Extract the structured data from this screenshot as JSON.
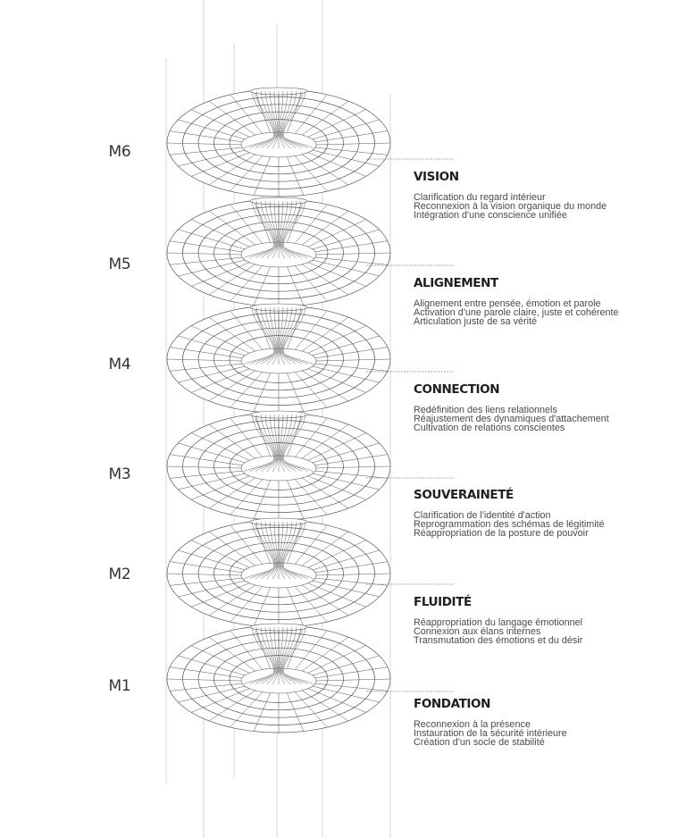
{
  "levels": [
    {
      "code": "M6",
      "title": "VISION",
      "lines": [
        "Clarification du regard intérieur",
        "Reconnexion à la vision organique du monde",
        "Intégration d'une conscience unifiée"
      ]
    },
    {
      "code": "M5",
      "title": "ALIGNEMENT",
      "lines": [
        "Alignement entre pensée, émotion et parole",
        "Activation d'une parole claire, juste et cohérente",
        "Articulation juste de sa vérité"
      ]
    },
    {
      "code": "M4",
      "title": "CONNECTION",
      "lines": [
        "Redéfinition des liens relationnels",
        "Réajustement des dynamiques d'attachement",
        "Cultivation de relations conscientes"
      ]
    },
    {
      "code": "M3",
      "title": "SOUVERAINETÉ",
      "lines": [
        "Clarification de l'identité d'action",
        "Reprogrammation des schémas de légitimité",
        "Réappropriation de la posture de pouvoir"
      ]
    },
    {
      "code": "M2",
      "title": "FLUIDITÉ",
      "lines": [
        "Réappropriation du langage émotionnel",
        "Connexion aux élans internes",
        "Transmutation des émotions et du désir"
      ]
    },
    {
      "code": "M1",
      "title": "FONDATION",
      "lines": [
        "Reconnexion à la présence",
        "Instauration de la sécurité intérieure",
        "Création d'un socle de stabilité"
      ]
    }
  ]
}
